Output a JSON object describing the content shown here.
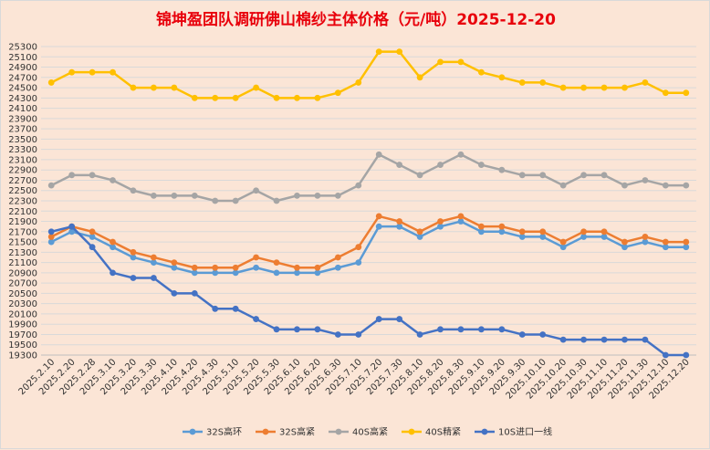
{
  "chart_data": {
    "type": "line",
    "title": "锦坤盈团队调研佛山棉纱主体价格（元/吨）2025-12-20",
    "xlabel": "",
    "ylabel": "",
    "ylim": [
      19300,
      25300
    ],
    "yticks": [
      19300,
      19500,
      19700,
      19900,
      20100,
      20300,
      20500,
      20700,
      20900,
      21100,
      21300,
      21500,
      21700,
      21900,
      22100,
      22300,
      22500,
      22700,
      22900,
      23100,
      23300,
      23500,
      23700,
      23900,
      24100,
      24300,
      24500,
      24700,
      24900,
      25100,
      25300
    ],
    "grid": true,
    "legend_position": "bottom",
    "categories": [
      "2025.2.10",
      "2025.2.20",
      "2025.2.28",
      "2025.3.10",
      "2025.3.20",
      "2025.3.30",
      "2025.4.10",
      "2025.4.20",
      "2025.4.30",
      "2025.5.10",
      "2025.5.20",
      "2025.5.30",
      "2025.6.10",
      "2025.6.20",
      "2025.6.30",
      "2025.7.10",
      "2025.7.20",
      "2025.7.30",
      "2025.8.10",
      "2025.8.20",
      "2025.8.30",
      "2025.9.10",
      "2025.9.20",
      "2025.9.30",
      "2025.10.10",
      "2025.10.20",
      "2025.10.30",
      "2025.11.10",
      "2025.11.20",
      "2025.11.30",
      "2025.12.10",
      "2025.12.20"
    ],
    "series": [
      {
        "name": "32S高环",
        "color": "#5B9BD5",
        "values": [
          21500,
          21700,
          21600,
          21400,
          21200,
          21100,
          21000,
          20900,
          20900,
          20900,
          21000,
          20900,
          20900,
          20900,
          21000,
          21100,
          21800,
          21800,
          21600,
          21800,
          21900,
          21700,
          21700,
          21600,
          21600,
          21400,
          21600,
          21600,
          21400,
          21500,
          21400,
          21400
        ]
      },
      {
        "name": "32S高紧",
        "color": "#ED7D31",
        "values": [
          21600,
          21800,
          21700,
          21500,
          21300,
          21200,
          21100,
          21000,
          21000,
          21000,
          21200,
          21100,
          21000,
          21000,
          21200,
          21400,
          22000,
          21900,
          21700,
          21900,
          22000,
          21800,
          21800,
          21700,
          21700,
          21500,
          21700,
          21700,
          21500,
          21600,
          21500,
          21500
        ]
      },
      {
        "name": "40S高紧",
        "color": "#A5A5A5",
        "values": [
          22600,
          22800,
          22800,
          22700,
          22500,
          22400,
          22400,
          22400,
          22300,
          22300,
          22500,
          22300,
          22400,
          22400,
          22400,
          22600,
          23200,
          23000,
          22800,
          23000,
          23200,
          23000,
          22900,
          22800,
          22800,
          22600,
          22800,
          22800,
          22600,
          22700,
          22600,
          22600
        ]
      },
      {
        "name": "40S精紧",
        "color": "#FFC000",
        "values": [
          24600,
          24800,
          24800,
          24800,
          24500,
          24500,
          24500,
          24300,
          24300,
          24300,
          24500,
          24300,
          24300,
          24300,
          24400,
          24600,
          25200,
          25200,
          24700,
          25000,
          25000,
          24800,
          24700,
          24600,
          24600,
          24500,
          24500,
          24500,
          24500,
          24600,
          24400,
          24400
        ]
      },
      {
        "name": "10S进口一线",
        "color": "#4472C4",
        "values": [
          21700,
          21800,
          21400,
          20900,
          20800,
          20800,
          20500,
          20500,
          20200,
          20200,
          20000,
          19800,
          19800,
          19800,
          19700,
          19700,
          20000,
          20000,
          19700,
          19800,
          19800,
          19800,
          19800,
          19700,
          19700,
          19600,
          19600,
          19600,
          19600,
          19600,
          19300,
          19300
        ]
      }
    ]
  }
}
